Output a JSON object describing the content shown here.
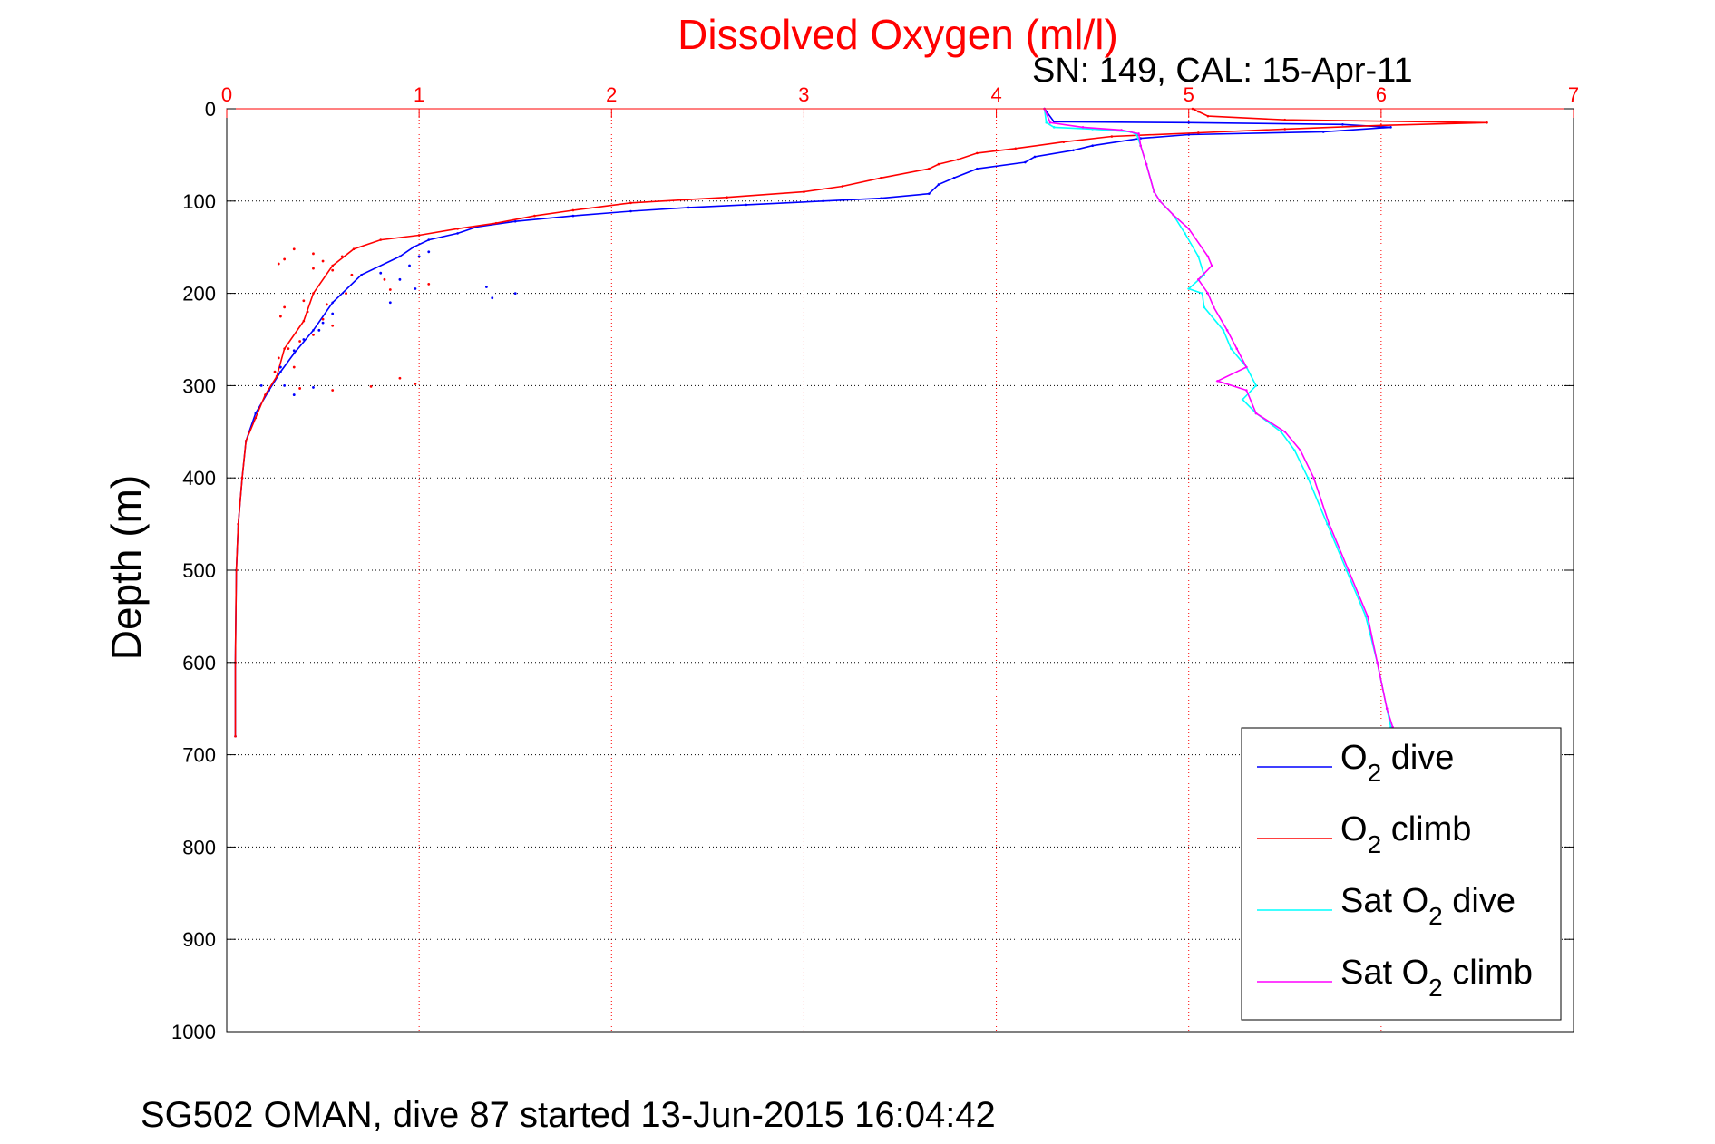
{
  "chart_data": {
    "type": "line",
    "title": "Dissolved Oxygen (ml/l)",
    "subtitle": "SN: 149, CAL: 15-Apr-11",
    "ylabel": "Depth (m)",
    "xlabel": "",
    "xlim": [
      0,
      7
    ],
    "ylim": [
      0,
      1000
    ],
    "y_inverted": true,
    "x_axis_position": "top",
    "x_ticks": [
      0,
      1,
      2,
      3,
      4,
      5,
      6,
      7
    ],
    "y_ticks": [
      0,
      100,
      200,
      300,
      400,
      500,
      600,
      700,
      800,
      900,
      1000
    ],
    "grid": true,
    "legend_position": "bottom-right",
    "series": [
      {
        "name": "O2 dive",
        "legend_base": "O",
        "legend_sub": "2",
        "legend_suffix": " dive",
        "color": "#0000ff",
        "points": [
          [
            4.25,
            0
          ],
          [
            4.3,
            14
          ],
          [
            5.0,
            15
          ],
          [
            5.8,
            17
          ],
          [
            6.05,
            20
          ],
          [
            5.7,
            25
          ],
          [
            5.0,
            28
          ],
          [
            4.75,
            32
          ],
          [
            4.5,
            40
          ],
          [
            4.4,
            45
          ],
          [
            4.2,
            52
          ],
          [
            4.15,
            58
          ],
          [
            3.9,
            65
          ],
          [
            3.78,
            75
          ],
          [
            3.7,
            82
          ],
          [
            3.65,
            92
          ],
          [
            3.4,
            97
          ],
          [
            3.1,
            100
          ],
          [
            2.7,
            104
          ],
          [
            2.4,
            107
          ],
          [
            2.1,
            111
          ],
          [
            1.8,
            116
          ],
          [
            1.5,
            122
          ],
          [
            1.3,
            128
          ],
          [
            1.2,
            135
          ],
          [
            1.05,
            142
          ],
          [
            0.97,
            150
          ],
          [
            0.9,
            160
          ],
          [
            0.7,
            180
          ],
          [
            0.55,
            210
          ],
          [
            0.45,
            240
          ],
          [
            0.35,
            265
          ],
          [
            0.28,
            285
          ],
          [
            0.22,
            305
          ],
          [
            0.15,
            330
          ],
          [
            0.1,
            360
          ],
          [
            0.08,
            400
          ],
          [
            0.06,
            450
          ],
          [
            0.05,
            500
          ],
          [
            0.045,
            600
          ],
          [
            0.045,
            680
          ]
        ]
      },
      {
        "name": "O2 climb",
        "legend_base": "O",
        "legend_sub": "2",
        "legend_suffix": " climb",
        "color": "#ff0000",
        "points": [
          [
            5.02,
            0
          ],
          [
            5.05,
            3
          ],
          [
            5.1,
            8
          ],
          [
            5.5,
            12
          ],
          [
            6.55,
            15
          ],
          [
            6.0,
            18
          ],
          [
            5.5,
            22
          ],
          [
            5.05,
            26
          ],
          [
            4.6,
            30
          ],
          [
            4.35,
            36
          ],
          [
            4.1,
            43
          ],
          [
            3.9,
            48
          ],
          [
            3.8,
            55
          ],
          [
            3.7,
            60
          ],
          [
            3.65,
            65
          ],
          [
            3.4,
            75
          ],
          [
            3.2,
            84
          ],
          [
            3.0,
            90
          ],
          [
            2.6,
            96
          ],
          [
            2.1,
            102
          ],
          [
            1.8,
            110
          ],
          [
            1.6,
            116
          ],
          [
            1.4,
            124
          ],
          [
            1.2,
            130
          ],
          [
            1.0,
            137
          ],
          [
            0.8,
            142
          ],
          [
            0.66,
            152
          ],
          [
            0.55,
            170
          ],
          [
            0.45,
            200
          ],
          [
            0.4,
            230
          ],
          [
            0.3,
            260
          ],
          [
            0.26,
            290
          ],
          [
            0.2,
            310
          ],
          [
            0.15,
            335
          ],
          [
            0.1,
            360
          ],
          [
            0.08,
            400
          ],
          [
            0.06,
            450
          ],
          [
            0.05,
            500
          ],
          [
            0.045,
            600
          ],
          [
            0.045,
            680
          ]
        ]
      },
      {
        "name": "Sat O2 dive",
        "legend_base": "Sat O",
        "legend_sub": "2",
        "legend_suffix": " dive",
        "color": "#00ffff",
        "points": [
          [
            4.25,
            0
          ],
          [
            4.26,
            15
          ],
          [
            4.3,
            20
          ],
          [
            4.5,
            22
          ],
          [
            4.7,
            25
          ],
          [
            4.73,
            28
          ],
          [
            4.75,
            40
          ],
          [
            4.78,
            60
          ],
          [
            4.82,
            90
          ],
          [
            4.85,
            100
          ],
          [
            4.92,
            115
          ],
          [
            4.98,
            135
          ],
          [
            5.05,
            160
          ],
          [
            5.08,
            180
          ],
          [
            5.0,
            195
          ],
          [
            5.07,
            200
          ],
          [
            5.08,
            215
          ],
          [
            5.18,
            240
          ],
          [
            5.22,
            260
          ],
          [
            5.3,
            280
          ],
          [
            5.35,
            300
          ],
          [
            5.28,
            315
          ],
          [
            5.35,
            330
          ],
          [
            5.48,
            350
          ],
          [
            5.55,
            370
          ],
          [
            5.62,
            400
          ],
          [
            5.72,
            450
          ],
          [
            5.82,
            500
          ],
          [
            5.92,
            550
          ],
          [
            5.98,
            600
          ],
          [
            6.03,
            650
          ],
          [
            6.05,
            670
          ]
        ]
      },
      {
        "name": "Sat O2 climb",
        "legend_base": "Sat O",
        "legend_sub": "2",
        "legend_suffix": " climb",
        "color": "#ff00ff",
        "points": [
          [
            4.25,
            0
          ],
          [
            4.28,
            15
          ],
          [
            4.45,
            20
          ],
          [
            4.65,
            23
          ],
          [
            4.74,
            27
          ],
          [
            4.75,
            40
          ],
          [
            4.78,
            60
          ],
          [
            4.82,
            90
          ],
          [
            4.85,
            100
          ],
          [
            4.92,
            115
          ],
          [
            5.0,
            130
          ],
          [
            5.1,
            160
          ],
          [
            5.12,
            170
          ],
          [
            5.05,
            185
          ],
          [
            5.1,
            200
          ],
          [
            5.13,
            215
          ],
          [
            5.2,
            240
          ],
          [
            5.25,
            260
          ],
          [
            5.3,
            280
          ],
          [
            5.15,
            295
          ],
          [
            5.3,
            305
          ],
          [
            5.35,
            330
          ],
          [
            5.5,
            350
          ],
          [
            5.58,
            370
          ],
          [
            5.65,
            400
          ],
          [
            5.73,
            450
          ],
          [
            5.83,
            500
          ],
          [
            5.93,
            550
          ],
          [
            5.98,
            600
          ],
          [
            6.03,
            650
          ],
          [
            6.06,
            670
          ]
        ]
      }
    ],
    "scatter_points": [
      {
        "color": "#ff0000",
        "points": [
          [
            0.3,
            163
          ],
          [
            0.27,
            168
          ],
          [
            0.35,
            152
          ],
          [
            0.45,
            157
          ],
          [
            0.5,
            165
          ],
          [
            0.6,
            160
          ],
          [
            0.45,
            173
          ],
          [
            0.55,
            175
          ],
          [
            0.65,
            180
          ],
          [
            0.82,
            185
          ],
          [
            1.05,
            190
          ],
          [
            0.85,
            196
          ],
          [
            0.62,
            200
          ],
          [
            0.4,
            208
          ],
          [
            0.52,
            212
          ],
          [
            0.3,
            215
          ],
          [
            0.42,
            220
          ],
          [
            0.28,
            225
          ],
          [
            0.5,
            228
          ],
          [
            0.55,
            235
          ],
          [
            0.45,
            245
          ],
          [
            0.38,
            252
          ],
          [
            0.32,
            260
          ],
          [
            0.27,
            270
          ],
          [
            0.35,
            280
          ],
          [
            0.25,
            285
          ],
          [
            0.9,
            292
          ],
          [
            0.98,
            298
          ],
          [
            0.75,
            301
          ],
          [
            0.38,
            303
          ],
          [
            0.55,
            305
          ]
        ]
      },
      {
        "color": "#0000ff",
        "points": [
          [
            1.0,
            160
          ],
          [
            1.05,
            155
          ],
          [
            0.95,
            170
          ],
          [
            0.8,
            178
          ],
          [
            0.9,
            185
          ],
          [
            0.98,
            195
          ],
          [
            1.35,
            193
          ],
          [
            1.38,
            205
          ],
          [
            1.5,
            200
          ],
          [
            0.85,
            210
          ],
          [
            0.55,
            222
          ],
          [
            0.5,
            232
          ],
          [
            0.48,
            240
          ],
          [
            0.4,
            250
          ],
          [
            0.35,
            262
          ],
          [
            0.28,
            280
          ],
          [
            0.3,
            300
          ],
          [
            0.35,
            310
          ],
          [
            0.18,
            300
          ],
          [
            0.45,
            302
          ]
        ]
      }
    ]
  },
  "caption": "SG502 OMAN, dive 87 started 13-Jun-2015 16:04:42"
}
